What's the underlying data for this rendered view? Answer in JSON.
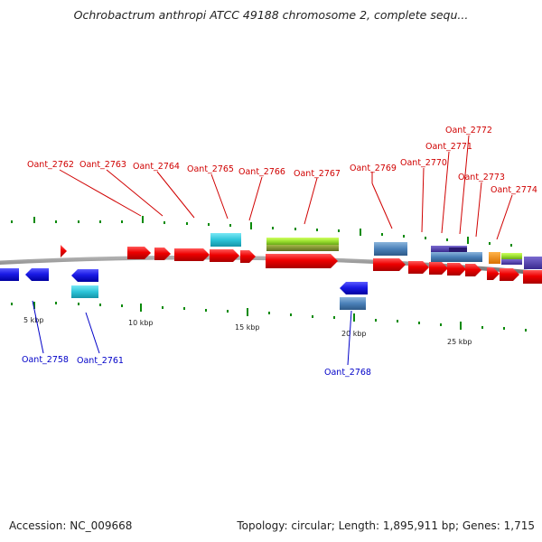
{
  "title": "Ochrobactrum anthropi ATCC 49188 chromosome 2, complete sequ...",
  "footer": {
    "accession": "Accession: NC_009668",
    "summary": "Topology: circular; Length: 1,895,911 bp; Genes: 1,715"
  },
  "scale_labels": [
    "5 kbp",
    "10 kbp",
    "15 kbp",
    "20 kbp",
    "25 kbp"
  ],
  "gene_labels": {
    "forward": [
      "Oant_2762",
      "Oant_2763",
      "Oant_2764",
      "Oant_2765",
      "Oant_2766",
      "Oant_2767",
      "Oant_2769",
      "Oant_2770",
      "Oant_2771",
      "Oant_2772",
      "Oant_2773",
      "Oant_2774"
    ],
    "reverse": [
      "Oant_2758",
      "Oant_2761",
      "Oant_2768"
    ]
  },
  "colors": {
    "forward_label": "#d00000",
    "reverse_label": "#0000c8",
    "forward_gene": "#ee0000",
    "reverse_gene": "#1a1ae6",
    "rna": "#33c8dd",
    "pseudo": "#4a80b8",
    "green_feature": "#9be030",
    "tick": "#0a8a0a",
    "backbone": "#8c8c8c"
  }
}
